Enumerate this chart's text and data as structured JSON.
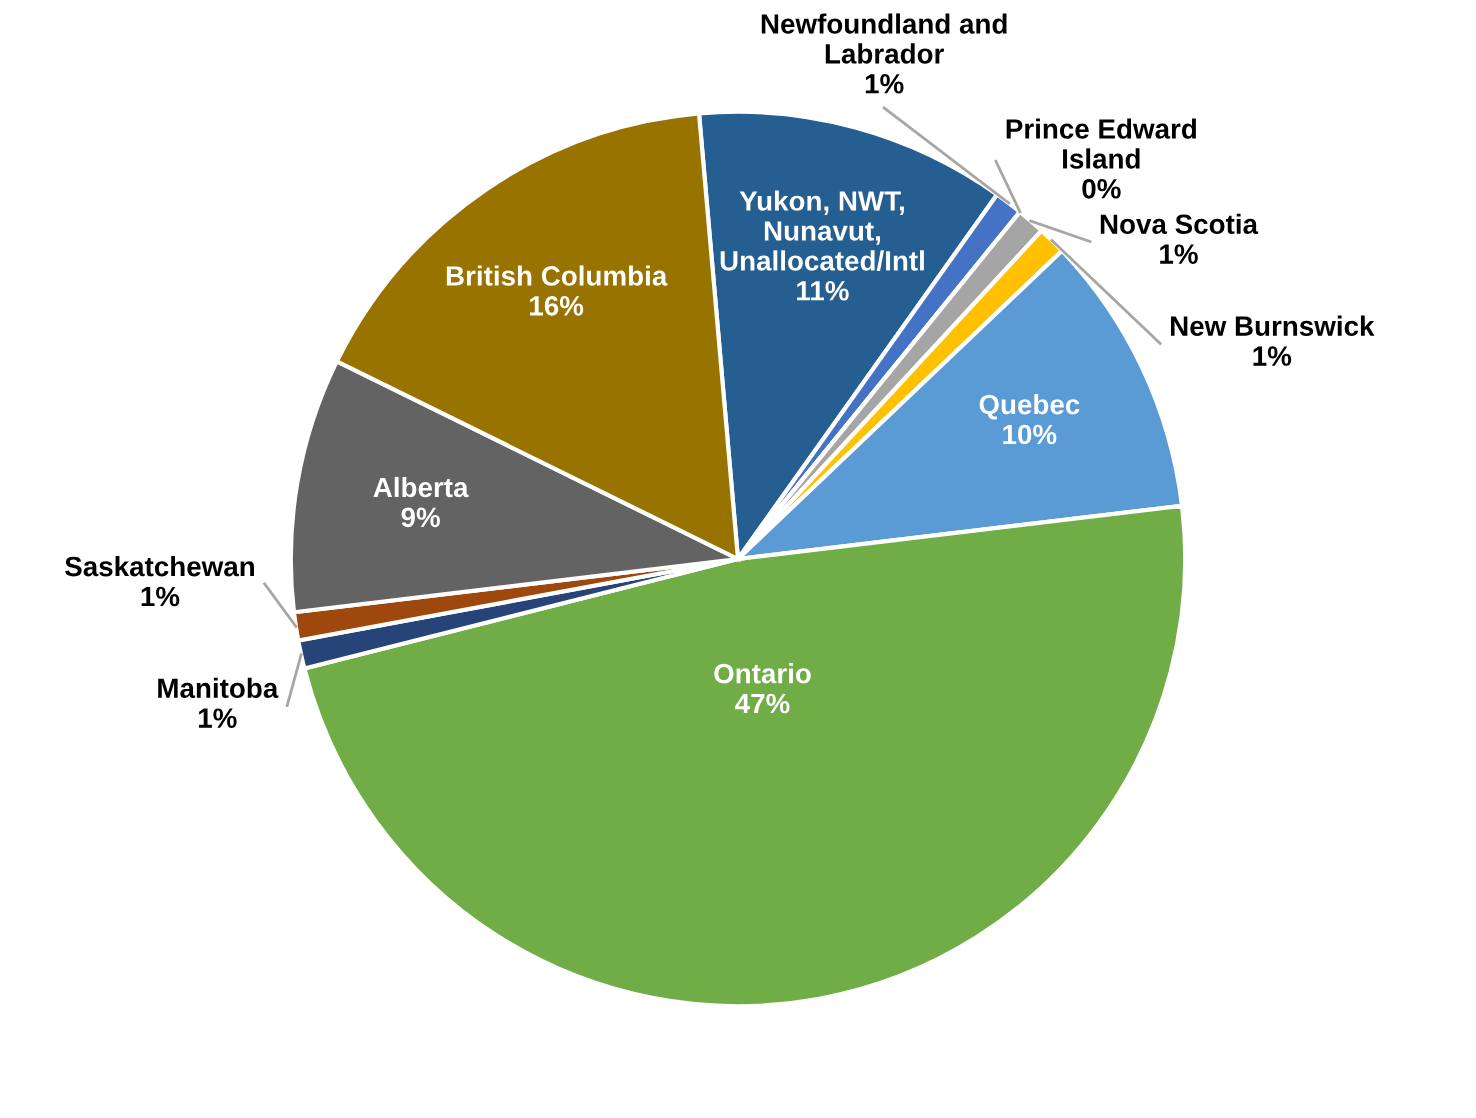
{
  "chart_data": {
    "type": "pie",
    "categories": [
      "Yukon, NWT, Nunavut, Unallocated/Intl",
      "Newfoundland and Labrador",
      "Prince Edward Island",
      "Nova Scotia",
      "New Burnswick",
      "Quebec",
      "Ontario",
      "Manitoba",
      "Saskatchewan",
      "Alberta",
      "British Columbia"
    ],
    "values": [
      11,
      1,
      0,
      1,
      1,
      10,
      47,
      1,
      1,
      9,
      16
    ],
    "value_labels": [
      "11%",
      "1%",
      "0%",
      "1%",
      "1%",
      "10%",
      "47%",
      "1%",
      "1%",
      "9%",
      "16%"
    ],
    "colors": [
      "#255e91",
      "#4472c4",
      "#f2c4d0",
      "#a5a5a5",
      "#ffc000",
      "#5b9bd5",
      "#70ad47",
      "#264478",
      "#9e480e",
      "#636363",
      "#997300"
    ],
    "legend": false
  }
}
